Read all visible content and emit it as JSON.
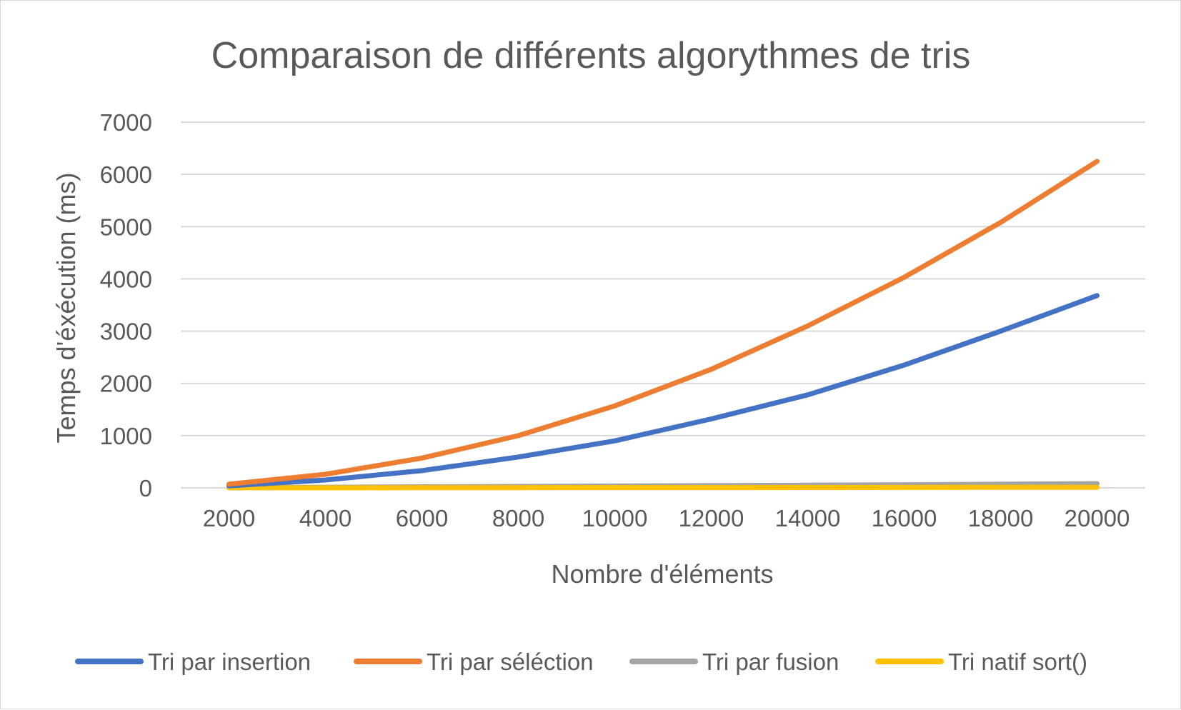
{
  "chart_data": {
    "type": "line",
    "title": "Comparaison de différents algorythmes de tris",
    "xlabel": "Nombre d'éléments",
    "ylabel": "Temps d'éxécution (ms)",
    "categories": [
      "2000",
      "4000",
      "6000",
      "8000",
      "10000",
      "12000",
      "14000",
      "16000",
      "18000",
      "20000"
    ],
    "yticks": [
      "0",
      "1000",
      "2000",
      "3000",
      "4000",
      "5000",
      "6000",
      "7000"
    ],
    "ylim": [
      0,
      7000
    ],
    "grid": true,
    "legend_position": "bottom",
    "series": [
      {
        "name": "Tri par insertion",
        "color": "#4472c4",
        "values": [
          40,
          150,
          330,
          590,
          900,
          1320,
          1780,
          2350,
          3000,
          3680
        ]
      },
      {
        "name": "Tri par séléction",
        "color": "#ed7d31",
        "values": [
          70,
          260,
          570,
          1000,
          1570,
          2270,
          3100,
          4030,
          5080,
          6250
        ]
      },
      {
        "name": "Tri par fusion",
        "color": "#a5a5a5",
        "values": [
          5,
          12,
          20,
          28,
          36,
          44,
          52,
          60,
          70,
          80
        ]
      },
      {
        "name": "Tri natif sort()",
        "color": "#ffc000",
        "values": [
          1,
          2,
          3,
          4,
          5,
          6,
          7,
          8,
          9,
          10
        ]
      }
    ]
  }
}
